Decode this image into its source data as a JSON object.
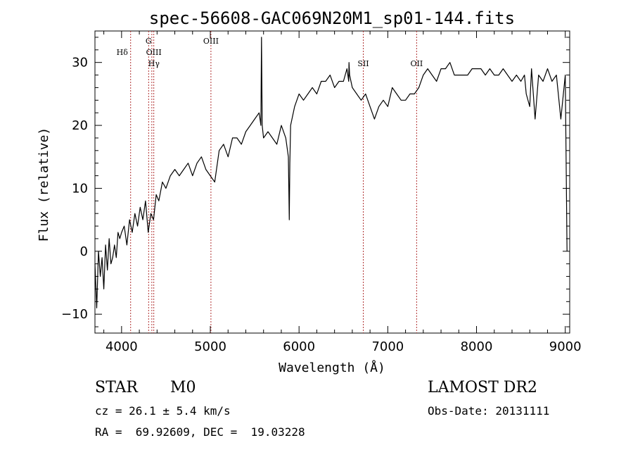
{
  "chart_data": {
    "type": "line",
    "title": "spec-56608-GAC069N20M1_sp01-144.fits",
    "xlabel": "Wavelength (Å)",
    "ylabel": "Flux (relative)",
    "xlim": [
      3700,
      9050
    ],
    "ylim": [
      -13,
      35
    ],
    "xticks": [
      4000,
      5000,
      6000,
      7000,
      8000,
      9000
    ],
    "xtick_labels": [
      "4000",
      "5000",
      "6000",
      "7000",
      "8000",
      "9000"
    ],
    "yticks": [
      -10,
      0,
      10,
      20,
      30
    ],
    "ytick_labels": [
      "−10",
      "0",
      "10",
      "20",
      "30"
    ],
    "line_color": "#000000",
    "marker_color": "#b03030",
    "spectral_lines": [
      {
        "name": "Hδ",
        "wavelength": 4102
      },
      {
        "name": "G",
        "wavelength": 4305
      },
      {
        "name": "OIII",
        "wavelength": 4363
      },
      {
        "name": "Hγ",
        "wavelength": 4341
      },
      {
        "name": "OIII",
        "wavelength": 5007
      },
      {
        "name": "SII",
        "wavelength": 6724
      },
      {
        "name": "OII",
        "wavelength": 7325
      }
    ],
    "series": [
      {
        "name": "flux",
        "x": [
          3700,
          3720,
          3740,
          3760,
          3780,
          3800,
          3820,
          3840,
          3860,
          3880,
          3900,
          3920,
          3940,
          3960,
          3980,
          4000,
          4030,
          4060,
          4090,
          4120,
          4150,
          4180,
          4210,
          4240,
          4270,
          4300,
          4330,
          4360,
          4390,
          4420,
          4460,
          4500,
          4550,
          4600,
          4650,
          4700,
          4750,
          4800,
          4850,
          4900,
          4950,
          5000,
          5050,
          5100,
          5150,
          5200,
          5250,
          5300,
          5350,
          5400,
          5450,
          5500,
          5550,
          5560,
          5570,
          5577,
          5585,
          5600,
          5650,
          5700,
          5750,
          5800,
          5850,
          5880,
          5890,
          5896,
          5905,
          5920,
          5950,
          6000,
          6050,
          6100,
          6150,
          6200,
          6250,
          6300,
          6350,
          6400,
          6450,
          6500,
          6540,
          6560,
          6563,
          6570,
          6600,
          6650,
          6700,
          6750,
          6800,
          6850,
          6900,
          6950,
          7000,
          7050,
          7100,
          7150,
          7200,
          7250,
          7300,
          7350,
          7400,
          7450,
          7500,
          7550,
          7600,
          7650,
          7700,
          7750,
          7800,
          7850,
          7900,
          7950,
          8000,
          8050,
          8100,
          8150,
          8200,
          8250,
          8300,
          8350,
          8400,
          8450,
          8500,
          8540,
          8560,
          8600,
          8620,
          8660,
          8700,
          8750,
          8800,
          8850,
          8900,
          8950,
          9000,
          9020
        ],
        "y": [
          -2,
          -9,
          0,
          -4,
          -1,
          -6,
          1,
          -3,
          2,
          -2,
          -1,
          1,
          -1,
          3,
          2,
          3,
          4,
          1,
          5,
          3,
          6,
          4,
          7,
          5,
          8,
          3,
          6,
          5,
          9,
          8,
          11,
          10,
          12,
          13,
          12,
          13,
          14,
          12,
          14,
          15,
          13,
          12,
          11,
          16,
          17,
          15,
          18,
          18,
          17,
          19,
          20,
          21,
          22,
          21,
          20,
          34,
          20,
          18,
          19,
          18,
          17,
          20,
          18,
          15,
          5,
          14,
          20,
          21,
          23,
          25,
          24,
          25,
          26,
          25,
          27,
          27,
          28,
          26,
          27,
          27,
          29,
          27,
          30,
          28,
          26,
          25,
          24,
          25,
          23,
          21,
          23,
          24,
          23,
          26,
          25,
          24,
          24,
          25,
          25,
          26,
          28,
          29,
          28,
          27,
          29,
          29,
          30,
          28,
          28,
          28,
          28,
          29,
          29,
          29,
          28,
          29,
          28,
          28,
          29,
          28,
          27,
          28,
          27,
          28,
          25,
          23,
          29,
          21,
          28,
          27,
          29,
          27,
          28,
          21,
          28,
          0
        ]
      }
    ]
  },
  "info": {
    "object_type": "STAR",
    "subclass": "M0",
    "survey": "LAMOST DR2",
    "redshift": "cz = 26.1 ± 5.4 km/s",
    "obs_date": "Obs-Date: 20131111",
    "coords": "RA =  69.92609, DEC =  19.03228"
  }
}
